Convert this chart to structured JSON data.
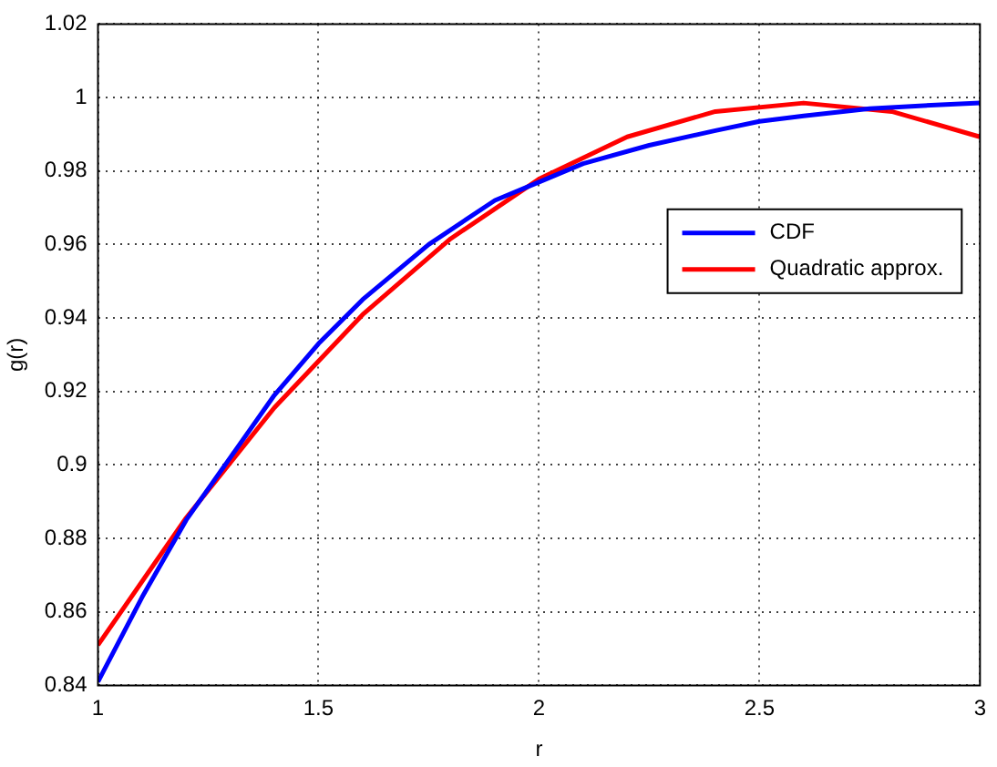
{
  "chart_data": {
    "type": "line",
    "xlabel": "r",
    "ylabel": "g(r)",
    "x": [
      1,
      1.1,
      1.2,
      1.3,
      1.4,
      1.5,
      1.6,
      1.75,
      1.9,
      2,
      2.1,
      2.25,
      2.4,
      2.5,
      2.6,
      2.75,
      2.9,
      3
    ],
    "series": [
      {
        "name": "CDF",
        "color": "#0000ff",
        "values": [
          0.841,
          0.864,
          0.885,
          0.902,
          0.919,
          0.933,
          0.945,
          0.96,
          0.972,
          0.977,
          0.982,
          0.987,
          0.991,
          0.9935,
          0.995,
          0.997,
          0.998,
          0.9985
        ]
      },
      {
        "name": "Quadratic approx.",
        "color": "#ff0000",
        "x": [
          1,
          1.2,
          1.4,
          1.6,
          1.8,
          2,
          2.2,
          2.4,
          2.6,
          2.8,
          3
        ],
        "values": [
          0.851,
          0.8856,
          0.9156,
          0.9409,
          0.9616,
          0.9778,
          0.9893,
          0.9962,
          0.9985,
          0.9962,
          0.9893
        ]
      }
    ],
    "xlim": [
      1,
      3
    ],
    "xticks": [
      1,
      1.5,
      2,
      2.5,
      3
    ],
    "ylim": [
      0.84,
      1.02
    ],
    "yticks": [
      0.84,
      0.86,
      0.88,
      0.9,
      0.92,
      0.94,
      0.96,
      0.98,
      1,
      1.02
    ],
    "grid": true,
    "legend": "right",
    "marker": "none",
    "line_style": "solid"
  }
}
